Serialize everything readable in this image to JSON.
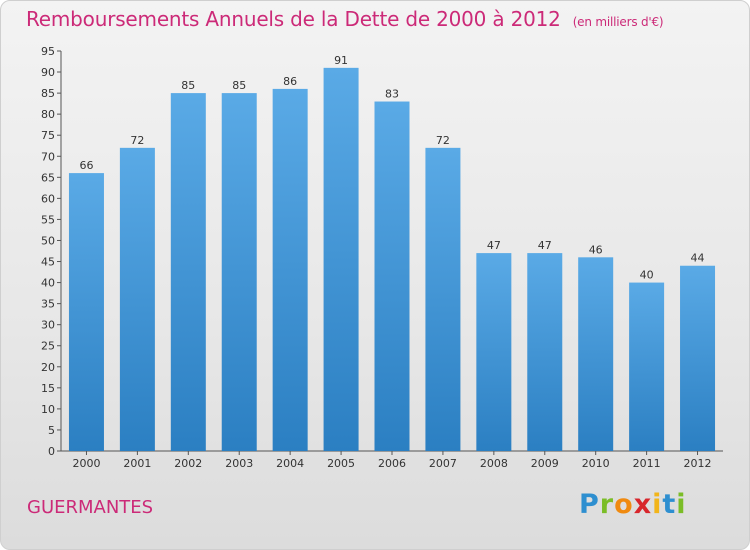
{
  "header": {
    "title": "Remboursements Annuels de la Dette de 2000 à 2012",
    "subtitle": "(en milliers d'€)"
  },
  "footer": {
    "commune": "GUERMANTES",
    "logo": "Proxiti"
  },
  "colors": {
    "title": "#cc2a78",
    "bar_light": "#5aaae6",
    "bar_dark": "#2b7fc2",
    "axis": "#333333"
  },
  "chart_data": {
    "type": "bar",
    "title": "Remboursements Annuels de la Dette de 2000 à 2012",
    "subtitle": "(en milliers d'€)",
    "xlabel": "",
    "ylabel": "",
    "categories": [
      "2000",
      "2001",
      "2002",
      "2003",
      "2004",
      "2005",
      "2006",
      "2007",
      "2008",
      "2009",
      "2010",
      "2011",
      "2012"
    ],
    "values": [
      66,
      72,
      85,
      85,
      86,
      91,
      83,
      72,
      47,
      47,
      46,
      40,
      44
    ],
    "ylim": [
      0,
      95
    ],
    "yticks": [
      0,
      5,
      10,
      15,
      20,
      25,
      30,
      35,
      40,
      45,
      50,
      55,
      60,
      65,
      70,
      75,
      80,
      85,
      90,
      95
    ],
    "grid": false,
    "data_labels": true
  }
}
